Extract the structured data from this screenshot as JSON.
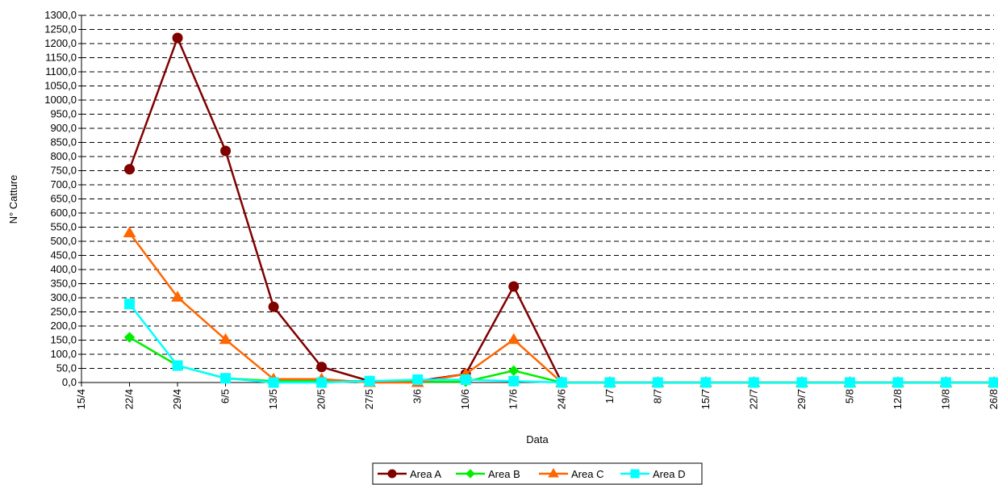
{
  "chart_data": {
    "type": "line",
    "title": "",
    "xlabel": "Data",
    "ylabel": "N° Catture",
    "categories": [
      "15/4",
      "22/4",
      "29/4",
      "6/5",
      "13/5",
      "20/5",
      "27/5",
      "3/6",
      "10/6",
      "17/6",
      "24/6",
      "1/7",
      "8/7",
      "15/7",
      "22/7",
      "29/7",
      "5/8",
      "12/8",
      "19/8",
      "26/8"
    ],
    "ylim": [
      0,
      1300
    ],
    "y_ticks": [
      "0,0",
      "50,0",
      "100,0",
      "150,0",
      "200,0",
      "250,0",
      "300,0",
      "350,0",
      "400,0",
      "450,0",
      "500,0",
      "550,0",
      "600,0",
      "650,0",
      "700,0",
      "750,0",
      "800,0",
      "850,0",
      "900,0",
      "950,0",
      "1000,0",
      "1050,0",
      "1100,0",
      "1150,0",
      "1200,0",
      "1250,0",
      "1300,0"
    ],
    "grid": "horizontal dashed",
    "legend_position": "bottom",
    "series": [
      {
        "name": "Area A",
        "color": "#800000",
        "marker": "circle",
        "values": [
          null,
          755,
          1220,
          820,
          268,
          55,
          5,
          5,
          30,
          340,
          0,
          0,
          0,
          0,
          0,
          0,
          0,
          0,
          0,
          0
        ]
      },
      {
        "name": "Area B",
        "color": "#00ee00",
        "marker": "diamond",
        "values": [
          null,
          160,
          60,
          15,
          5,
          5,
          5,
          3,
          3,
          42,
          0,
          0,
          0,
          0,
          0,
          0,
          0,
          0,
          0,
          0
        ]
      },
      {
        "name": "Area C",
        "color": "#ff6600",
        "marker": "triangle",
        "values": [
          null,
          530,
          302,
          152,
          12,
          12,
          0,
          0,
          30,
          152,
          0,
          0,
          0,
          0,
          0,
          0,
          0,
          0,
          0,
          0
        ]
      },
      {
        "name": "Area D",
        "color": "#00ffff",
        "marker": "square",
        "values": [
          null,
          278,
          60,
          15,
          0,
          0,
          5,
          10,
          10,
          5,
          0,
          0,
          0,
          0,
          0,
          0,
          0,
          0,
          0,
          0
        ]
      }
    ]
  }
}
